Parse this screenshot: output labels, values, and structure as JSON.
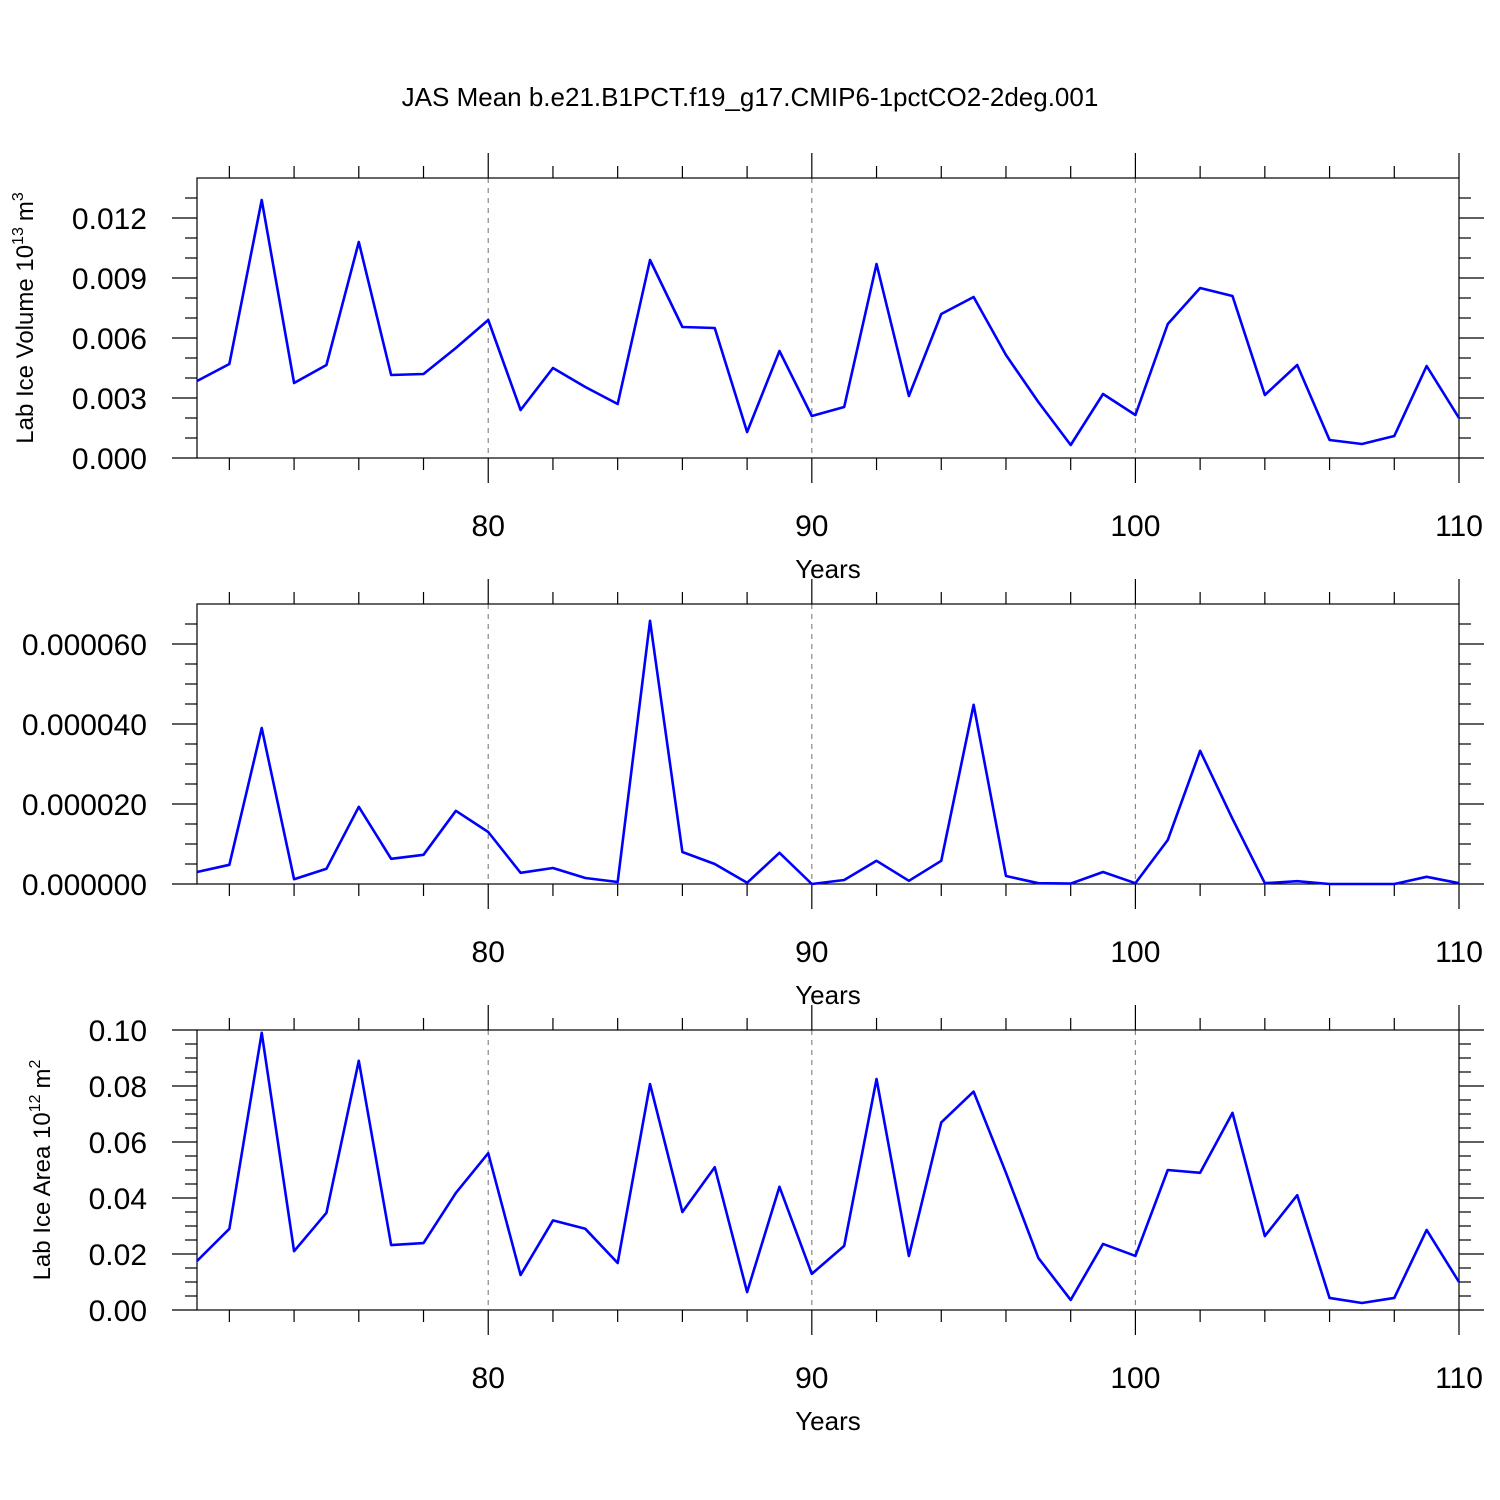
{
  "title": "JAS Mean b.e21.B1PCT.f19_g17.CMIP6-1pctCO2-2deg.001",
  "chart_data": [
    {
      "type": "line",
      "xlabel": "Years",
      "ylabel": [
        "Lab Ice Volume 10",
        "13",
        "m",
        "3"
      ],
      "color": "#0000ff",
      "grid": true,
      "x": [
        71,
        72,
        73,
        74,
        75,
        76,
        77,
        78,
        79,
        80,
        81,
        82,
        83,
        84,
        85,
        86,
        87,
        88,
        89,
        90,
        91,
        92,
        93,
        94,
        95,
        96,
        97,
        98,
        99,
        100,
        101,
        102,
        103,
        104,
        105,
        106,
        107,
        108,
        109,
        110
      ],
      "values": [
        0.00385,
        0.0047,
        0.0129,
        0.00375,
        0.00465,
        0.0108,
        0.00415,
        0.0042,
        0.0055,
        0.0069,
        0.0024,
        0.0045,
        0.00355,
        0.0027,
        0.0099,
        0.00655,
        0.0065,
        0.0013,
        0.00535,
        0.0021,
        0.00255,
        0.0097,
        0.0031,
        0.0072,
        0.00805,
        0.00515,
        0.0028,
        0.00065,
        0.0032,
        0.00215,
        0.0067,
        0.0085,
        0.0081,
        0.00315,
        0.00465,
        0.0009,
        0.0007,
        0.0011,
        0.0046,
        0.002
      ],
      "xlim": [
        71,
        110
      ],
      "xticks": [
        80,
        90,
        100,
        110
      ],
      "xminorticks": [
        72,
        74,
        76,
        78,
        82,
        84,
        86,
        88,
        92,
        94,
        96,
        98,
        102,
        104,
        106,
        108
      ],
      "ylim": [
        0,
        0.014
      ],
      "yticks": [
        {
          "value": 0,
          "label": "0.000"
        },
        0.003,
        0.006,
        0.009,
        0.012
      ],
      "yminorticks": [
        0.001,
        0.002,
        0.004,
        0.005,
        0.007,
        0.008,
        0.01,
        0.011,
        0.013
      ]
    },
    {
      "type": "line",
      "xlabel": "Years",
      "color": "#0000ff",
      "grid": true,
      "x": [
        71,
        72,
        73,
        74,
        75,
        76,
        77,
        78,
        79,
        80,
        81,
        82,
        83,
        84,
        85,
        86,
        87,
        88,
        89,
        90,
        91,
        92,
        93,
        94,
        95,
        96,
        97,
        98,
        99,
        100,
        101,
        102,
        103,
        104,
        105,
        106,
        107,
        108,
        109,
        110
      ],
      "values": [
        3e-06,
        4.8e-06,
        3.9e-05,
        1.2e-06,
        3.8e-06,
        1.93e-05,
        6.3e-06,
        7.3e-06,
        1.83e-05,
        1.3e-05,
        2.8e-06,
        4e-06,
        1.5e-06,
        5e-07,
        6.58e-05,
        8e-06,
        5e-06,
        3e-07,
        7.8e-06,
        0,
        1e-06,
        5.8e-06,
        8e-07,
        5.8e-06,
        4.48e-05,
        2e-06,
        2e-07,
        1e-07,
        3e-06,
        2e-07,
        1.1e-05,
        3.33e-05,
        1.63e-05,
        2e-07,
        7e-07,
        0,
        0,
        0,
        1.8e-06,
        2e-07
      ],
      "xlim": [
        71,
        110
      ],
      "xticks": [
        80,
        90,
        100,
        110
      ],
      "xminorticks": [
        72,
        74,
        76,
        78,
        82,
        84,
        86,
        88,
        92,
        94,
        96,
        98,
        102,
        104,
        106,
        108
      ],
      "ylim": [
        0,
        7e-05
      ],
      "yticks": [
        {
          "value": 0,
          "label": "0.000000"
        },
        {
          "value": 2e-05,
          "label": "0.000020"
        },
        {
          "value": 4e-05,
          "label": "0.000040"
        },
        {
          "value": 6e-05,
          "label": "0.000060"
        }
      ],
      "yminorticks": [
        5e-06,
        1e-05,
        1.5e-05,
        2.5e-05,
        3e-05,
        3.5e-05,
        4.5e-05,
        5e-05,
        5.5e-05,
        6.5e-05
      ]
    },
    {
      "type": "line",
      "xlabel": "Years",
      "ylabel": [
        "Lab Ice Area 10",
        "12",
        "m",
        "2"
      ],
      "color": "#0000ff",
      "grid": true,
      "x": [
        71,
        72,
        73,
        74,
        75,
        76,
        77,
        78,
        79,
        80,
        81,
        82,
        83,
        84,
        85,
        86,
        87,
        88,
        89,
        90,
        91,
        92,
        93,
        94,
        95,
        96,
        97,
        98,
        99,
        100,
        101,
        102,
        103,
        104,
        105,
        106,
        107,
        108,
        109,
        110
      ],
      "values": [
        0.0175,
        0.029,
        0.099,
        0.021,
        0.0347,
        0.089,
        0.0232,
        0.0239,
        0.0418,
        0.056,
        0.0125,
        0.032,
        0.029,
        0.0168,
        0.0807,
        0.035,
        0.051,
        0.0064,
        0.044,
        0.0129,
        0.0229,
        0.0825,
        0.0193,
        0.067,
        0.078,
        0.049,
        0.0186,
        0.0036,
        0.0236,
        0.0193,
        0.05,
        0.049,
        0.0704,
        0.0264,
        0.041,
        0.0043,
        0.0025,
        0.0043,
        0.0286,
        0.01
      ],
      "xlim": [
        71,
        110
      ],
      "xticks": [
        80,
        90,
        100,
        110
      ],
      "xminorticks": [
        72,
        74,
        76,
        78,
        82,
        84,
        86,
        88,
        92,
        94,
        96,
        98,
        102,
        104,
        106,
        108
      ],
      "ylim": [
        0,
        0.1
      ],
      "yticks": [
        {
          "value": 0,
          "label": "0.00"
        },
        0.02,
        0.04,
        0.06,
        0.08,
        {
          "value": 0.1,
          "label": "0.10"
        }
      ],
      "yminorticks": [
        0.005,
        0.01,
        0.015,
        0.025,
        0.03,
        0.035,
        0.045,
        0.05,
        0.055,
        0.065,
        0.07,
        0.075,
        0.085,
        0.09,
        0.095
      ]
    }
  ]
}
